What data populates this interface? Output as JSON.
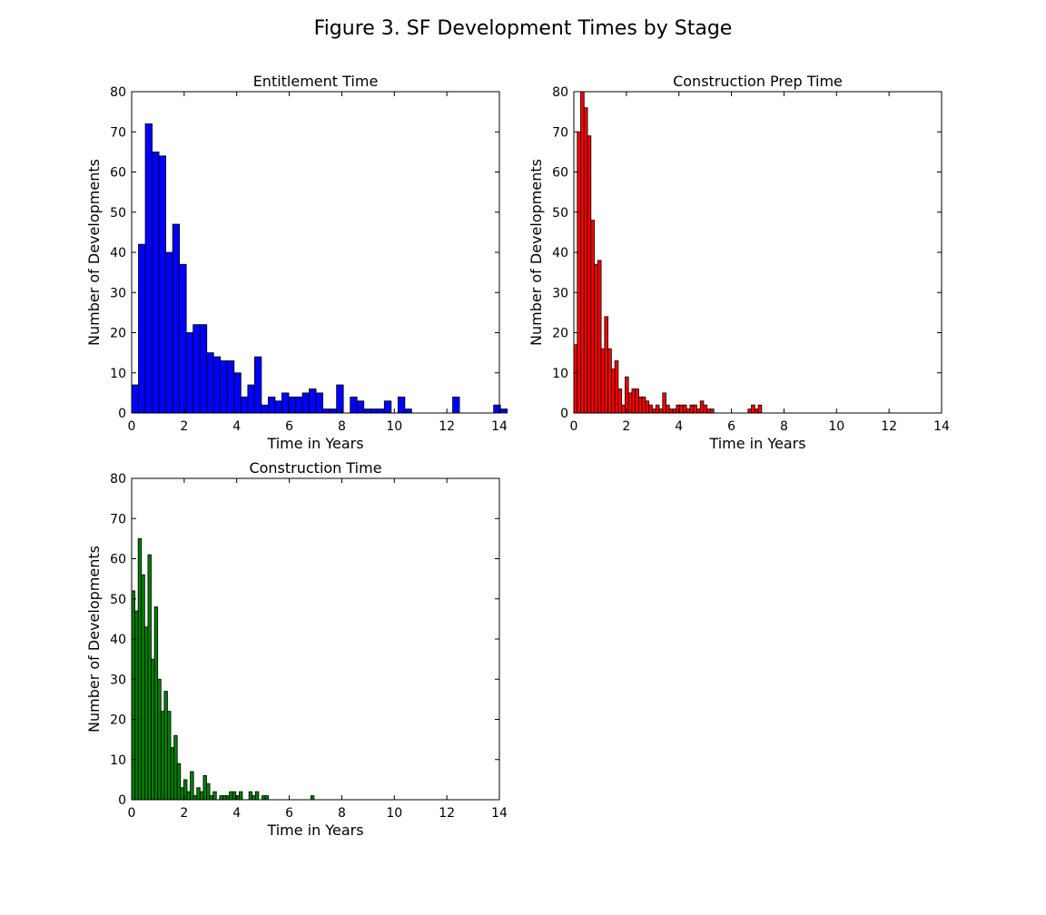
{
  "figure": {
    "title": "Figure 3. SF Development Times by Stage"
  },
  "chart_data": [
    {
      "type": "bar",
      "title": "Entitlement Time",
      "xlabel": "Time in Years",
      "ylabel": "Number of Developments",
      "xlim": [
        0,
        14
      ],
      "ylim": [
        0,
        80
      ],
      "xticks": [
        0,
        2,
        4,
        6,
        8,
        10,
        12,
        14
      ],
      "yticks": [
        0,
        10,
        20,
        30,
        40,
        50,
        60,
        70,
        80
      ],
      "color": "#0000ff",
      "bin_width": 0.26,
      "bin_start": 0,
      "values": [
        7,
        42,
        72,
        65,
        64,
        40,
        47,
        37,
        20,
        22,
        22,
        15,
        14,
        13,
        13,
        10,
        4,
        7,
        14,
        2,
        4,
        3,
        5,
        4,
        4,
        5,
        6,
        5,
        1,
        1,
        7,
        0,
        4,
        3,
        1,
        1,
        1,
        3,
        0,
        4,
        1,
        0,
        0,
        0,
        0,
        0,
        0,
        4,
        0,
        0,
        0,
        0,
        0,
        2,
        1
      ]
    },
    {
      "type": "bar",
      "title": "Construction Prep Time",
      "xlabel": "Time in Years",
      "ylabel": "Number of Developments",
      "xlim": [
        0,
        14
      ],
      "ylim": [
        0,
        80
      ],
      "xticks": [
        0,
        2,
        4,
        6,
        8,
        10,
        12,
        14
      ],
      "yticks": [
        0,
        10,
        20,
        30,
        40,
        50,
        60,
        70,
        80
      ],
      "color": "#ff0000",
      "bin_width": 0.13,
      "bin_start": 0,
      "values": [
        17,
        70,
        80,
        76,
        69,
        48,
        37,
        38,
        16,
        24,
        16,
        11,
        13,
        6,
        2,
        9,
        5,
        6,
        6,
        4,
        4,
        3,
        2,
        1,
        2,
        1,
        5,
        2,
        1,
        1,
        2,
        2,
        2,
        1,
        2,
        2,
        1,
        3,
        2,
        1,
        1,
        0,
        0,
        0,
        0,
        0,
        0,
        0,
        0,
        0,
        0,
        1,
        2,
        1,
        2
      ]
    },
    {
      "type": "bar",
      "title": "Construction Time",
      "xlabel": "Time in Years",
      "ylabel": "Number of Developments",
      "xlim": [
        0,
        14
      ],
      "ylim": [
        0,
        80
      ],
      "xticks": [
        0,
        2,
        4,
        6,
        8,
        10,
        12,
        14
      ],
      "yticks": [
        0,
        10,
        20,
        30,
        40,
        50,
        60,
        70,
        80
      ],
      "color": "#007f00",
      "bin_width": 0.124,
      "bin_start": 0,
      "values": [
        52,
        47,
        65,
        56,
        43,
        61,
        35,
        48,
        30,
        22,
        27,
        22,
        13,
        16,
        9,
        3,
        5,
        2,
        7,
        1,
        3,
        2,
        6,
        4,
        1,
        2,
        0,
        1,
        1,
        1,
        2,
        2,
        1,
        2,
        0,
        0,
        2,
        1,
        2,
        0,
        1,
        1,
        0,
        0,
        0,
        0,
        0,
        0,
        0,
        0,
        0,
        0,
        0,
        0,
        0,
        1
      ]
    }
  ]
}
